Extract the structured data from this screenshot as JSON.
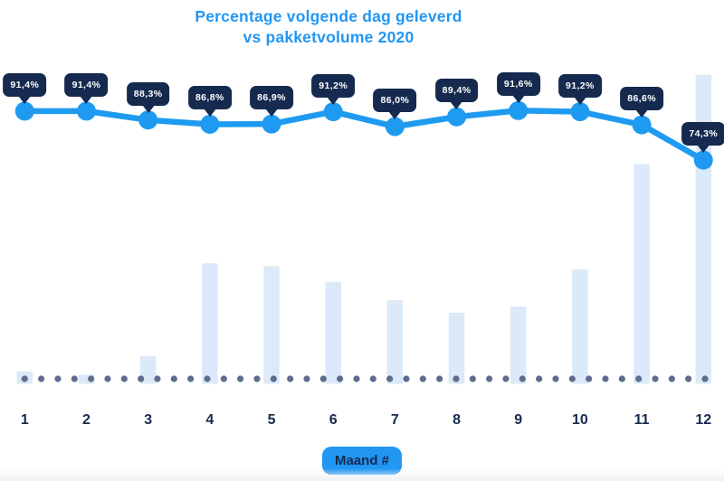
{
  "theme": {
    "accent_blue": "#2196F3",
    "line_blue": "#1E9BF0",
    "navy": "#152A4E",
    "tooltip_bg": "#152A4E",
    "tooltip_text": "#FFFFFF",
    "bar_fill": "#DBE9F9",
    "dot_color": "#5E6D8D",
    "title_blue": "#2196F3"
  },
  "title": {
    "line1": "Percentage volgende dag geleverd",
    "line2": "vs pakketvolume 2020"
  },
  "x_axis": {
    "label_badge": "Maand #"
  },
  "chart_data": {
    "type": "combo (line + bar)",
    "title": "Percentage volgende dag geleverd vs pakketvolume 2020",
    "xlabel": "Maand #",
    "ylabel": "",
    "categories": [
      "1",
      "2",
      "3",
      "4",
      "5",
      "6",
      "7",
      "8",
      "9",
      "10",
      "11",
      "12"
    ],
    "grid": false,
    "legend": false,
    "baseline_dots": {
      "style": "dotted horizontal baseline",
      "color": "#5E6D8D"
    },
    "series": [
      {
        "name": "Percentage volgende dag geleverd",
        "type": "line",
        "unit": "%",
        "values": [
          91.4,
          91.4,
          88.3,
          86.8,
          86.9,
          91.2,
          86.0,
          89.4,
          91.6,
          91.2,
          86.6,
          74.3
        ],
        "labels": [
          "91,4%",
          "91,4%",
          "88,3%",
          "86,8%",
          "86,9%",
          "91,2%",
          "86,0%",
          "89,4%",
          "91,6%",
          "91,2%",
          "86,6%",
          "74,3%"
        ],
        "color": "#1E9BF0",
        "label_bg": "#152A4E",
        "label_text": "#FFFFFF"
      },
      {
        "name": "Pakketvolume 2020",
        "type": "bar",
        "unit": "relative volume (no value axis shown; estimated from bar heights, max month = 100)",
        "values": [
          4,
          3,
          9,
          39,
          38,
          33,
          27,
          23,
          25,
          37,
          71,
          100
        ],
        "color": "#DBE9F9"
      }
    ]
  }
}
